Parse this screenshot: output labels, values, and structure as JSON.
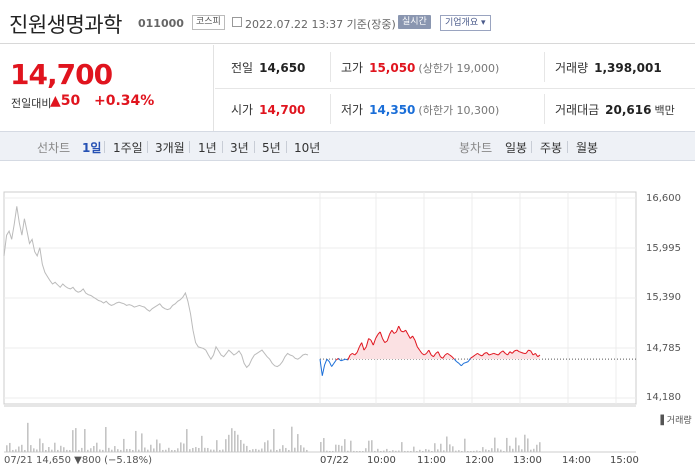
{
  "header": {
    "name": "진원생명과학",
    "code": "011000",
    "market": "코스피",
    "time": "2022.07.22 13:37 기준(장중)",
    "live": "실시간",
    "corp_info": "기업개요 ▾"
  },
  "price": {
    "current": "14,700",
    "compare_label": "전일대비",
    "change_arrow": "▲",
    "change": "50",
    "change_pct": "+0.34%"
  },
  "stats": {
    "prev_label": "전일",
    "prev": "14,650",
    "high_label": "고가",
    "high": "15,050",
    "upper_limit": "(상한가 19,000)",
    "volume_label": "거래량",
    "volume": "1,398,001",
    "open_label": "시가",
    "open": "14,700",
    "low_label": "저가",
    "low": "14,350",
    "lower_limit": "(하한가 10,300)",
    "amount_label": "거래대금",
    "amount": "20,616",
    "amount_unit": "백만"
  },
  "chart_bar": {
    "line_label": "선차트",
    "periods": [
      "1일",
      "1주일",
      "3개월",
      "1년",
      "3년",
      "5년",
      "10년"
    ],
    "selected": "1일",
    "candle_label": "봉차트",
    "candles": [
      "일봉",
      "주봉",
      "월봉"
    ]
  },
  "chart_data": {
    "type": "line",
    "yticks": [
      "16,600",
      "15,995",
      "15,390",
      "14,785",
      "14,180"
    ],
    "ylim": [
      14180,
      16600
    ],
    "prev_close": 14650,
    "xticks": [
      "07/21",
      "07/22",
      "10:00",
      "11:00",
      "12:00",
      "13:00",
      "14:00",
      "15:00"
    ],
    "series": [
      {
        "day": "07/21",
        "values": [
          15900,
          16150,
          16200,
          16100,
          16280,
          16500,
          16300,
          16150,
          16350,
          16200,
          16050,
          16100,
          15950,
          15900,
          16000,
          15800,
          15700,
          15650,
          15600,
          15560,
          15580,
          15550,
          15520,
          15560,
          15530,
          15510,
          15500,
          15520,
          15480,
          15460,
          15470,
          15500,
          15450,
          15430,
          15420,
          15400,
          15380,
          15360,
          15350,
          15330,
          15350,
          15320,
          15300,
          15310,
          15330,
          15340,
          15330,
          15320,
          15300,
          15310,
          15300,
          15280,
          15290,
          15300,
          15290,
          15280,
          15250,
          15230,
          15260,
          15280,
          15300,
          15320,
          15280,
          15260,
          15250,
          15260,
          15300,
          15320,
          15350,
          15370,
          15400,
          15450,
          15350,
          15200,
          15000,
          14850,
          14800,
          14790,
          14780,
          14760,
          14700,
          14650,
          14700,
          14800,
          14750,
          14700,
          14680,
          14720,
          14760,
          14730,
          14700,
          14720,
          14750,
          14700,
          14600,
          14550,
          14580,
          14650,
          14700,
          14720,
          14740,
          14760,
          14720,
          14680,
          14650,
          14600,
          14570,
          14560,
          14580,
          14620,
          14680,
          14720,
          14700,
          14690,
          14660,
          14650,
          14670,
          14700,
          14710,
          14700
        ]
      },
      {
        "day": "07/22",
        "values": [
          14650,
          14450,
          14580,
          14650,
          14620,
          14560,
          14600,
          14640,
          14660,
          14630,
          14640,
          14650,
          14640,
          14700,
          14720,
          14700,
          14730,
          14800,
          14850,
          14760,
          14800,
          14900,
          14880,
          14820,
          14900,
          14950,
          14980,
          14900,
          14850,
          14870,
          14950,
          15000,
          14960,
          14980,
          15050,
          14990,
          14980,
          15000,
          14950,
          14900,
          14930,
          14880,
          14800,
          14760,
          14720,
          14700,
          14720,
          14760,
          14700,
          14680,
          14720,
          14740,
          14680,
          14660,
          14700,
          14720,
          14700,
          14680,
          14650,
          14620,
          14600,
          14570,
          14600,
          14610,
          14620,
          14660,
          14680,
          14700,
          14720,
          14700,
          14690,
          14720,
          14730,
          14700,
          14710,
          14720,
          14710,
          14700,
          14730,
          14750,
          14720,
          14700,
          14740,
          14720,
          14750,
          14760,
          14740,
          14730,
          14720,
          14720,
          14760,
          14750,
          14700,
          14720,
          14680,
          14700
        ]
      }
    ],
    "volume_label": "거래량",
    "footer": "07/21  14,650 ▼800 (−5.18%)"
  }
}
